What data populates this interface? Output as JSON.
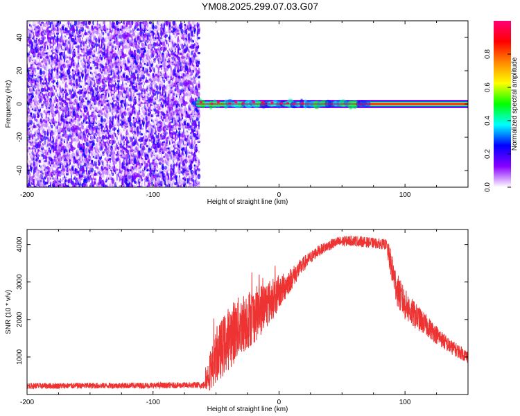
{
  "title": "YM08.2025.299.07.03.G07",
  "chart_data": [
    {
      "type": "heatmap",
      "title": "",
      "xlabel": "Height of straight line (km)",
      "ylabel": "Frequency (Hz)",
      "xlim": [
        -200,
        150
      ],
      "ylim": [
        -50,
        50
      ],
      "xticks": [
        {
          "value": -200,
          "label": "-200"
        },
        {
          "value": -100,
          "label": "-100"
        },
        {
          "value": 0,
          "label": "0"
        },
        {
          "value": 100,
          "label": "100"
        }
      ],
      "yticks": [
        {
          "value": -40,
          "label": "-40"
        },
        {
          "value": -20,
          "label": "-20"
        },
        {
          "value": 0,
          "label": "0"
        },
        {
          "value": 20,
          "label": "20"
        },
        {
          "value": 40,
          "label": "40"
        }
      ],
      "noise_region_x": [
        -200,
        -63
      ],
      "noise_amplitude_range": [
        0.0,
        0.25
      ],
      "signal_line": {
        "frequency_hz": 0,
        "x_start": -66,
        "x_end": 150,
        "peak_amplitude": 1.0
      },
      "colorbar": {
        "label": "Normalized spectral amplitude",
        "range": [
          0,
          1
        ],
        "ticks": [
          {
            "value": 0.0,
            "label": "0.0"
          },
          {
            "value": 0.2,
            "label": "0.2"
          },
          {
            "value": 0.4,
            "label": "0.4"
          },
          {
            "value": 0.6,
            "label": "0.6"
          },
          {
            "value": 0.8,
            "label": "0.8"
          }
        ],
        "colors": [
          "#ffffff",
          "#8800ff",
          "#0000ff",
          "#00ffff",
          "#00ff00",
          "#ffff00",
          "#ff8800",
          "#ff0000",
          "#ff0077"
        ]
      }
    },
    {
      "type": "line",
      "title": "",
      "xlabel": "Height of straight line (km)",
      "ylabel": "SNR (10 * v/v)",
      "xlim": [
        -200,
        150
      ],
      "ylim": [
        0,
        4400
      ],
      "xticks": [
        {
          "value": -200,
          "label": "-200"
        },
        {
          "value": -100,
          "label": "-100"
        },
        {
          "value": 0,
          "label": "0"
        },
        {
          "value": 100,
          "label": "100"
        }
      ],
      "yticks": [
        {
          "value": 1000,
          "label": "1000"
        },
        {
          "value": 2000,
          "label": "2000"
        },
        {
          "value": 3000,
          "label": "3000"
        },
        {
          "value": 4000,
          "label": "4000"
        }
      ],
      "color": "#ee3333",
      "series": [
        {
          "name": "SNR",
          "x": [
            -200,
            -180,
            -160,
            -140,
            -120,
            -100,
            -80,
            -60,
            -55,
            -50,
            -45,
            -40,
            -35,
            -30,
            -25,
            -20,
            -15,
            -10,
            -5,
            0,
            5,
            10,
            15,
            20,
            25,
            30,
            35,
            40,
            45,
            50,
            55,
            60,
            65,
            70,
            75,
            80,
            85,
            88,
            92,
            95,
            100,
            105,
            110,
            115,
            120,
            125,
            130,
            135,
            140,
            145,
            150
          ],
          "y": [
            230,
            230,
            235,
            235,
            240,
            240,
            245,
            250,
            600,
            1000,
            1250,
            1500,
            1700,
            1850,
            2000,
            2100,
            2250,
            2400,
            2550,
            2700,
            2900,
            3100,
            3300,
            3500,
            3650,
            3800,
            3900,
            3980,
            4050,
            4080,
            4100,
            4100,
            4080,
            4060,
            4040,
            4020,
            4000,
            3600,
            3000,
            2700,
            2400,
            2200,
            2050,
            1900,
            1750,
            1600,
            1450,
            1300,
            1200,
            1100,
            1000
          ],
          "noise_amplitude": [
            80,
            80,
            80,
            80,
            80,
            80,
            80,
            90,
            500,
            700,
            800,
            850,
            850,
            800,
            800,
            750,
            700,
            650,
            550,
            450,
            380,
            300,
            250,
            200,
            170,
            150,
            140,
            140,
            140,
            140,
            140,
            140,
            140,
            140,
            140,
            140,
            140,
            350,
            450,
            450,
            420,
            380,
            340,
            300,
            270,
            250,
            220,
            200,
            190,
            180,
            170
          ]
        }
      ]
    }
  ]
}
